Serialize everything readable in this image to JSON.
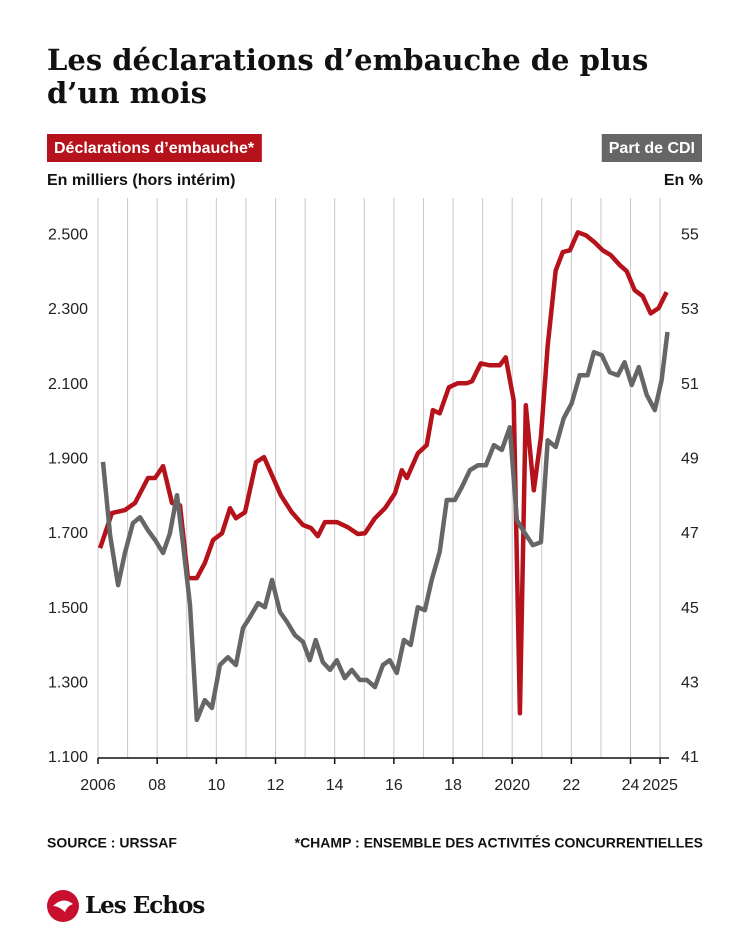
{
  "chart_data": {
    "type": "line",
    "title": [
      "Les déclarations d’embauche de plus",
      "d’un mois"
    ],
    "ylabel": "En milliers (hors intérim)",
    "y2label": "En %",
    "source": "SOURCE : URSSAF",
    "note": "*CHAMP : ENSEMBLE DES ACTIVITÉS CONCURRENTIELLES",
    "brand": "Les Echos",
    "xlim": [
      2006,
      2025.3
    ],
    "xticks": [
      {
        "value": 2006,
        "label": "2006"
      },
      {
        "value": 2007,
        "label": null
      },
      {
        "value": 2008,
        "label": "08"
      },
      {
        "value": 2009,
        "label": null
      },
      {
        "value": 2010,
        "label": "10"
      },
      {
        "value": 2011,
        "label": null
      },
      {
        "value": 2012,
        "label": "12"
      },
      {
        "value": 2013,
        "label": null
      },
      {
        "value": 2014,
        "label": "14"
      },
      {
        "value": 2015,
        "label": null
      },
      {
        "value": 2016,
        "label": "16"
      },
      {
        "value": 2017,
        "label": null
      },
      {
        "value": 2018,
        "label": "18"
      },
      {
        "value": 2019,
        "label": null
      },
      2020,
      {
        "value": 2021,
        "label": null
      },
      {
        "value": 2022,
        "label": "22"
      },
      {
        "value": 2023,
        "label": null
      },
      {
        "value": 2024,
        "label": "24"
      },
      2025
    ],
    "ylim": [
      1100,
      2600
    ],
    "yticks": [
      {
        "value": 1100,
        "label": "1.100"
      },
      {
        "value": 1300,
        "label": "1.300"
      },
      {
        "value": 1500,
        "label": "1.500"
      },
      {
        "value": 1700,
        "label": "1.700"
      },
      {
        "value": 1900,
        "label": "1.900"
      },
      {
        "value": 2100,
        "label": "2.100"
      },
      {
        "value": 2300,
        "label": "2.300"
      },
      {
        "value": 2500,
        "label": "2.500"
      }
    ],
    "y2lim": [
      41,
      56
    ],
    "y2ticks": [
      41,
      43,
      45,
      47,
      49,
      51,
      53,
      55
    ],
    "grid": "x",
    "series": [
      {
        "name": "Déclarations d’embauche*",
        "color": "#b5121b",
        "axis": "y",
        "x": [
          2006.07,
          2006.47,
          2006.91,
          2007.25,
          2007.69,
          2007.93,
          2008.2,
          2008.5,
          2008.77,
          2009.04,
          2009.34,
          2009.61,
          2009.89,
          2010.19,
          2010.46,
          2010.66,
          2010.97,
          2011.34,
          2011.61,
          2011.91,
          2012.18,
          2012.55,
          2012.93,
          2013.2,
          2013.43,
          2013.67,
          2014.07,
          2014.45,
          2014.78,
          2015.02,
          2015.36,
          2015.7,
          2016.04,
          2016.27,
          2016.44,
          2016.81,
          2017.11,
          2017.32,
          2017.55,
          2017.86,
          2018.16,
          2018.47,
          2018.64,
          2018.94,
          2019.24,
          2019.58,
          2019.78,
          2020.05,
          2020.26,
          2020.46,
          2020.73,
          2020.97,
          2021.2,
          2021.47,
          2021.71,
          2021.95,
          2022.22,
          2022.49,
          2022.79,
          2023.06,
          2023.33,
          2023.64,
          2023.87,
          2024.14,
          2024.41,
          2024.68,
          2024.95,
          2025.22
        ],
        "values": [
          1662,
          1756,
          1764,
          1783,
          1850,
          1850,
          1882,
          1783,
          1777,
          1582,
          1582,
          1622,
          1684,
          1702,
          1769,
          1742,
          1758,
          1892,
          1906,
          1852,
          1804,
          1758,
          1724,
          1716,
          1694,
          1732,
          1732,
          1718,
          1700,
          1702,
          1742,
          1769,
          1809,
          1871,
          1850,
          1916,
          1938,
          2032,
          2023,
          2093,
          2104,
          2104,
          2109,
          2157,
          2152,
          2152,
          2173,
          2058,
          1220,
          2045,
          1817,
          1959,
          2205,
          2406,
          2455,
          2460,
          2508,
          2500,
          2481,
          2460,
          2447,
          2420,
          2404,
          2353,
          2337,
          2291,
          2305,
          2348
        ]
      },
      {
        "name": "Part de CDI",
        "color": "#666666",
        "axis": "y2",
        "x": [
          2006.17,
          2006.41,
          2006.68,
          2006.91,
          2007.18,
          2007.42,
          2007.69,
          2007.93,
          2008.2,
          2008.43,
          2008.67,
          2008.87,
          2009.11,
          2009.34,
          2009.61,
          2009.85,
          2010.12,
          2010.39,
          2010.66,
          2010.9,
          2011.14,
          2011.41,
          2011.64,
          2011.88,
          2012.15,
          2012.39,
          2012.66,
          2012.93,
          2013.16,
          2013.36,
          2013.6,
          2013.84,
          2014.07,
          2014.34,
          2014.58,
          2014.85,
          2015.09,
          2015.36,
          2015.63,
          2015.86,
          2016.1,
          2016.34,
          2016.57,
          2016.81,
          2017.05,
          2017.28,
          2017.55,
          2017.79,
          2018.06,
          2018.3,
          2018.57,
          2018.84,
          2019.11,
          2019.38,
          2019.65,
          2019.92,
          2020.16,
          2020.43,
          2020.7,
          2020.97,
          2021.2,
          2021.47,
          2021.74,
          2022.01,
          2022.28,
          2022.55,
          2022.76,
          2023.03,
          2023.3,
          2023.57,
          2023.8,
          2024.04,
          2024.28,
          2024.55,
          2024.82,
          2025.05,
          2025.25
        ],
        "values": [
          48.93,
          46.97,
          45.63,
          46.49,
          47.29,
          47.45,
          47.1,
          46.84,
          46.49,
          47.02,
          48.04,
          46.76,
          45.1,
          42.02,
          42.55,
          42.34,
          43.49,
          43.7,
          43.49,
          44.48,
          44.78,
          45.15,
          45.04,
          45.77,
          44.91,
          44.64,
          44.29,
          44.11,
          43.62,
          44.16,
          43.57,
          43.36,
          43.62,
          43.14,
          43.36,
          43.09,
          43.09,
          42.9,
          43.49,
          43.62,
          43.28,
          44.16,
          44.03,
          45.04,
          44.96,
          45.77,
          46.52,
          47.91,
          47.91,
          48.26,
          48.71,
          48.84,
          48.84,
          49.38,
          49.25,
          49.86,
          47.37,
          47.02,
          46.7,
          46.78,
          49.51,
          49.33,
          50.1,
          50.5,
          51.25,
          51.25,
          51.87,
          51.79,
          51.33,
          51.25,
          51.6,
          50.99,
          51.47,
          50.72,
          50.32,
          51.12,
          52.41
        ]
      }
    ]
  }
}
